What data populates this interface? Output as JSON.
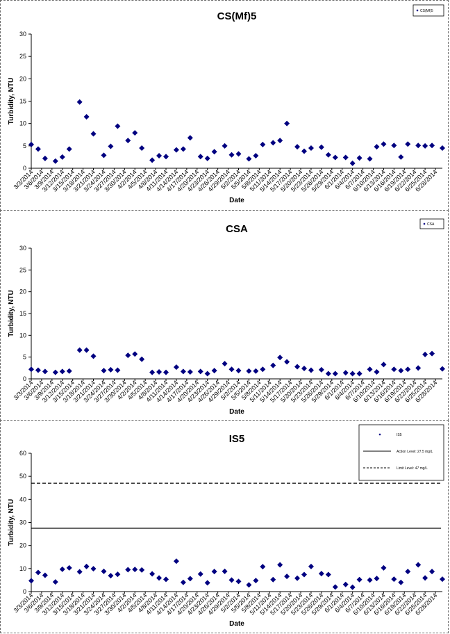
{
  "chart_data": [
    {
      "type": "scatter",
      "title": "CS(Mf)5",
      "xlabel": "Date",
      "ylabel": "Turbidity, NTU",
      "ylim": [
        0,
        30
      ],
      "yticks": [
        0,
        5,
        10,
        15,
        20,
        25,
        30
      ],
      "grid": false,
      "legend_position": "top-right",
      "x_range": [
        "3/3/2014",
        "6/30/2014"
      ],
      "x_tick_labels": [
        "3/3/2014",
        "3/6/2014",
        "3/9/2014",
        "3/12/2014",
        "3/15/2014",
        "3/18/2014",
        "3/21/2014",
        "3/24/2014",
        "3/27/2014",
        "3/30/2014",
        "4/2/2014",
        "4/5/2014",
        "4/8/2014",
        "4/11/2014",
        "4/14/2014",
        "4/17/2014",
        "4/20/2014",
        "4/23/2014",
        "4/26/2014",
        "4/29/2014",
        "5/2/2014",
        "5/5/2014",
        "5/8/2014",
        "5/11/2014",
        "5/14/2014",
        "5/17/2014",
        "5/20/2014",
        "5/23/2014",
        "5/26/2014",
        "5/29/2014",
        "6/1/2014",
        "6/4/2014",
        "6/7/2014",
        "6/10/2014",
        "6/13/2014",
        "6/16/2014",
        "6/19/2014",
        "6/22/2014",
        "6/25/2014",
        "6/28/2014"
      ],
      "series": [
        {
          "name": "CS(Mf)5",
          "marker": "diamond",
          "color": "#000080",
          "lines": [],
          "points": [
            {
              "x": "3/3/2014",
              "y": 5.3
            },
            {
              "x": "3/5/2014",
              "y": 4.3
            },
            {
              "x": "3/7/2014",
              "y": 2.2
            },
            {
              "x": "3/10/2014",
              "y": 1.6
            },
            {
              "x": "3/12/2014",
              "y": 2.5
            },
            {
              "x": "3/14/2014",
              "y": 4.3
            },
            {
              "x": "3/17/2014",
              "y": 14.8
            },
            {
              "x": "3/19/2014",
              "y": 11.5
            },
            {
              "x": "3/21/2014",
              "y": 7.7
            },
            {
              "x": "3/24/2014",
              "y": 2.9
            },
            {
              "x": "3/26/2014",
              "y": 4.9
            },
            {
              "x": "3/28/2014",
              "y": 9.4
            },
            {
              "x": "3/31/2014",
              "y": 6.2
            },
            {
              "x": "4/2/2014",
              "y": 7.9
            },
            {
              "x": "4/4/2014",
              "y": 4.5
            },
            {
              "x": "4/7/2014",
              "y": 1.8
            },
            {
              "x": "4/9/2014",
              "y": 2.8
            },
            {
              "x": "4/11/2014",
              "y": 2.6
            },
            {
              "x": "4/14/2014",
              "y": 4.1
            },
            {
              "x": "4/16/2014",
              "y": 4.3
            },
            {
              "x": "4/18/2014",
              "y": 6.8
            },
            {
              "x": "4/21/2014",
              "y": 2.6
            },
            {
              "x": "4/23/2014",
              "y": 2.2
            },
            {
              "x": "4/25/2014",
              "y": 3.7
            },
            {
              "x": "4/28/2014",
              "y": 5.0
            },
            {
              "x": "4/30/2014",
              "y": 3.0
            },
            {
              "x": "5/2/2014",
              "y": 3.2
            },
            {
              "x": "5/5/2014",
              "y": 2.1
            },
            {
              "x": "5/7/2014",
              "y": 2.8
            },
            {
              "x": "5/9/2014",
              "y": 5.3
            },
            {
              "x": "5/12/2014",
              "y": 5.7
            },
            {
              "x": "5/14/2014",
              "y": 6.2
            },
            {
              "x": "5/16/2014",
              "y": 10.0
            },
            {
              "x": "5/19/2014",
              "y": 4.8
            },
            {
              "x": "5/21/2014",
              "y": 3.8
            },
            {
              "x": "5/23/2014",
              "y": 4.5
            },
            {
              "x": "5/26/2014",
              "y": 4.7
            },
            {
              "x": "5/28/2014",
              "y": 3.0
            },
            {
              "x": "5/30/2014",
              "y": 2.4
            },
            {
              "x": "6/2/2014",
              "y": 2.4
            },
            {
              "x": "6/4/2014",
              "y": 1.1
            },
            {
              "x": "6/6/2014",
              "y": 2.3
            },
            {
              "x": "6/9/2014",
              "y": 2.1
            },
            {
              "x": "6/11/2014",
              "y": 4.8
            },
            {
              "x": "6/13/2014",
              "y": 5.4
            },
            {
              "x": "6/16/2014",
              "y": 5.1
            },
            {
              "x": "6/18/2014",
              "y": 2.5
            },
            {
              "x": "6/20/2014",
              "y": 5.4
            },
            {
              "x": "6/23/2014",
              "y": 5.1
            },
            {
              "x": "6/25/2014",
              "y": 5.0
            },
            {
              "x": "6/27/2014",
              "y": 5.1
            },
            {
              "x": "6/30/2014",
              "y": 4.5
            }
          ]
        }
      ]
    },
    {
      "type": "scatter",
      "title": "CSA",
      "xlabel": "Date",
      "ylabel": "Turbidity, NTU",
      "ylim": [
        0,
        30
      ],
      "yticks": [
        0,
        5,
        10,
        15,
        20,
        25,
        30
      ],
      "grid": false,
      "legend_position": "top-right",
      "x_range": [
        "3/3/2014",
        "6/30/2014"
      ],
      "x_tick_labels": [
        "3/3/2014",
        "3/6/2014",
        "3/9/2014",
        "3/12/2014",
        "3/15/2014",
        "3/18/2014",
        "3/21/2014",
        "3/24/2014",
        "3/27/2014",
        "3/30/2014",
        "4/2/2014",
        "4/5/2014",
        "4/8/2014",
        "4/11/2014",
        "4/14/2014",
        "4/17/2014",
        "4/20/2014",
        "4/23/2014",
        "4/26/2014",
        "4/29/2014",
        "5/2/2014",
        "5/5/2014",
        "5/8/2014",
        "5/11/2014",
        "5/14/2014",
        "5/17/2014",
        "5/20/2014",
        "5/23/2014",
        "5/26/2014",
        "5/29/2014",
        "6/1/2014",
        "6/4/2014",
        "6/7/2014",
        "6/10/2014",
        "6/13/2014",
        "6/16/2014",
        "6/19/2014",
        "6/22/2014",
        "6/25/2014",
        "6/28/2014"
      ],
      "series": [
        {
          "name": "CSA",
          "marker": "diamond",
          "color": "#000080",
          "lines": [],
          "points": [
            {
              "x": "3/3/2014",
              "y": 2.2
            },
            {
              "x": "3/5/2014",
              "y": 2.0
            },
            {
              "x": "3/7/2014",
              "y": 1.7
            },
            {
              "x": "3/10/2014",
              "y": 1.5
            },
            {
              "x": "3/12/2014",
              "y": 1.7
            },
            {
              "x": "3/14/2014",
              "y": 1.8
            },
            {
              "x": "3/17/2014",
              "y": 6.6
            },
            {
              "x": "3/19/2014",
              "y": 6.6
            },
            {
              "x": "3/21/2014",
              "y": 5.2
            },
            {
              "x": "3/24/2014",
              "y": 1.9
            },
            {
              "x": "3/26/2014",
              "y": 2.1
            },
            {
              "x": "3/28/2014",
              "y": 2.0
            },
            {
              "x": "3/31/2014",
              "y": 5.4
            },
            {
              "x": "4/2/2014",
              "y": 5.7
            },
            {
              "x": "4/4/2014",
              "y": 4.5
            },
            {
              "x": "4/7/2014",
              "y": 1.5
            },
            {
              "x": "4/9/2014",
              "y": 1.6
            },
            {
              "x": "4/11/2014",
              "y": 1.5
            },
            {
              "x": "4/14/2014",
              "y": 2.7
            },
            {
              "x": "4/16/2014",
              "y": 1.7
            },
            {
              "x": "4/18/2014",
              "y": 1.6
            },
            {
              "x": "4/21/2014",
              "y": 1.7
            },
            {
              "x": "4/23/2014",
              "y": 1.2
            },
            {
              "x": "4/25/2014",
              "y": 1.9
            },
            {
              "x": "4/28/2014",
              "y": 3.5
            },
            {
              "x": "4/30/2014",
              "y": 2.2
            },
            {
              "x": "5/2/2014",
              "y": 1.9
            },
            {
              "x": "5/5/2014",
              "y": 1.8
            },
            {
              "x": "5/7/2014",
              "y": 1.8
            },
            {
              "x": "5/9/2014",
              "y": 2.2
            },
            {
              "x": "5/12/2014",
              "y": 3.1
            },
            {
              "x": "5/14/2014",
              "y": 4.9
            },
            {
              "x": "5/16/2014",
              "y": 3.9
            },
            {
              "x": "5/19/2014",
              "y": 2.8
            },
            {
              "x": "5/21/2014",
              "y": 2.4
            },
            {
              "x": "5/23/2014",
              "y": 2.0
            },
            {
              "x": "5/26/2014",
              "y": 2.1
            },
            {
              "x": "5/28/2014",
              "y": 1.2
            },
            {
              "x": "5/30/2014",
              "y": 1.2
            },
            {
              "x": "6/2/2014",
              "y": 1.4
            },
            {
              "x": "6/4/2014",
              "y": 1.2
            },
            {
              "x": "6/6/2014",
              "y": 1.2
            },
            {
              "x": "6/9/2014",
              "y": 2.2
            },
            {
              "x": "6/11/2014",
              "y": 1.6
            },
            {
              "x": "6/13/2014",
              "y": 3.3
            },
            {
              "x": "6/16/2014",
              "y": 2.2
            },
            {
              "x": "6/18/2014",
              "y": 1.9
            },
            {
              "x": "6/20/2014",
              "y": 2.2
            },
            {
              "x": "6/23/2014",
              "y": 2.5
            },
            {
              "x": "6/25/2014",
              "y": 5.6
            },
            {
              "x": "6/27/2014",
              "y": 5.8
            },
            {
              "x": "6/30/2014",
              "y": 2.3
            }
          ]
        }
      ]
    },
    {
      "type": "scatter",
      "title": "IS5",
      "xlabel": "Date",
      "ylabel": "Turbidity, NTU",
      "ylim": [
        0,
        60
      ],
      "yticks": [
        0,
        10,
        20,
        30,
        40,
        50,
        60
      ],
      "grid": false,
      "legend_position": "top-right",
      "x_range": [
        "3/3/2014",
        "6/30/2014"
      ],
      "x_tick_labels": [
        "3/3/2014",
        "3/6/2014",
        "3/9/2014",
        "3/12/2014",
        "3/15/2014",
        "3/18/2014",
        "3/21/2014",
        "3/24/2014",
        "3/27/2014",
        "3/30/2014",
        "4/2/2014",
        "4/5/2014",
        "4/8/2014",
        "4/11/2014",
        "4/14/2014",
        "4/17/2014",
        "4/20/2014",
        "4/23/2014",
        "4/26/2014",
        "4/29/2014",
        "5/2/2014",
        "5/5/2014",
        "5/8/2014",
        "5/11/2014",
        "5/14/2014",
        "5/17/2014",
        "5/20/2014",
        "5/23/2014",
        "5/26/2014",
        "5/29/2014",
        "6/1/2014",
        "6/4/2014",
        "6/7/2014",
        "6/10/2014",
        "6/13/2014",
        "6/16/2014",
        "6/19/2014",
        "6/22/2014",
        "6/25/2014",
        "6/28/2014"
      ],
      "series": [
        {
          "name": "IS5",
          "marker": "diamond",
          "color": "#000080",
          "lines": [
            {
              "name": "Action Level: 27.5 mg/L",
              "y": 27.5,
              "style": "solid"
            },
            {
              "name": "Limit Level: 47 mg/L",
              "y": 47,
              "style": "dashed"
            }
          ],
          "points": [
            {
              "x": "3/3/2014",
              "y": 4.7
            },
            {
              "x": "3/5/2014",
              "y": 8.3
            },
            {
              "x": "3/7/2014",
              "y": 7.1
            },
            {
              "x": "3/10/2014",
              "y": 4.2
            },
            {
              "x": "3/12/2014",
              "y": 9.7
            },
            {
              "x": "3/14/2014",
              "y": 10.3
            },
            {
              "x": "3/17/2014",
              "y": 8.6
            },
            {
              "x": "3/19/2014",
              "y": 10.9
            },
            {
              "x": "3/21/2014",
              "y": 9.9
            },
            {
              "x": "3/24/2014",
              "y": 8.8
            },
            {
              "x": "3/26/2014",
              "y": 6.9
            },
            {
              "x": "3/28/2014",
              "y": 7.5
            },
            {
              "x": "3/31/2014",
              "y": 9.5
            },
            {
              "x": "4/2/2014",
              "y": 9.6
            },
            {
              "x": "4/4/2014",
              "y": 9.4
            },
            {
              "x": "4/7/2014",
              "y": 7.7
            },
            {
              "x": "4/9/2014",
              "y": 5.9
            },
            {
              "x": "4/11/2014",
              "y": 5.3
            },
            {
              "x": "4/14/2014",
              "y": 13.2
            },
            {
              "x": "4/16/2014",
              "y": 4.0
            },
            {
              "x": "4/18/2014",
              "y": 5.6
            },
            {
              "x": "4/21/2014",
              "y": 7.6
            },
            {
              "x": "4/23/2014",
              "y": 3.8
            },
            {
              "x": "4/25/2014",
              "y": 8.7
            },
            {
              "x": "4/28/2014",
              "y": 8.8
            },
            {
              "x": "4/30/2014",
              "y": 5.0
            },
            {
              "x": "5/2/2014",
              "y": 4.4
            },
            {
              "x": "5/5/2014",
              "y": 2.9
            },
            {
              "x": "5/7/2014",
              "y": 4.8
            },
            {
              "x": "5/9/2014",
              "y": 10.8
            },
            {
              "x": "5/12/2014",
              "y": 5.2
            },
            {
              "x": "5/14/2014",
              "y": 11.6
            },
            {
              "x": "5/16/2014",
              "y": 6.6
            },
            {
              "x": "5/19/2014",
              "y": 5.8
            },
            {
              "x": "5/21/2014",
              "y": 7.4
            },
            {
              "x": "5/23/2014",
              "y": 10.9
            },
            {
              "x": "5/26/2014",
              "y": 7.8
            },
            {
              "x": "5/28/2014",
              "y": 7.4
            },
            {
              "x": "5/30/2014",
              "y": 2.0
            },
            {
              "x": "6/2/2014",
              "y": 3.1
            },
            {
              "x": "6/4/2014",
              "y": 1.9
            },
            {
              "x": "6/6/2014",
              "y": 5.2
            },
            {
              "x": "6/9/2014",
              "y": 5.0
            },
            {
              "x": "6/11/2014",
              "y": 5.7
            },
            {
              "x": "6/13/2014",
              "y": 10.3
            },
            {
              "x": "6/16/2014",
              "y": 5.4
            },
            {
              "x": "6/18/2014",
              "y": 4.0
            },
            {
              "x": "6/20/2014",
              "y": 8.7
            },
            {
              "x": "6/23/2014",
              "y": 11.6
            },
            {
              "x": "6/25/2014",
              "y": 5.9
            },
            {
              "x": "6/27/2014",
              "y": 8.7
            },
            {
              "x": "6/30/2014",
              "y": 5.4
            }
          ]
        }
      ]
    }
  ]
}
